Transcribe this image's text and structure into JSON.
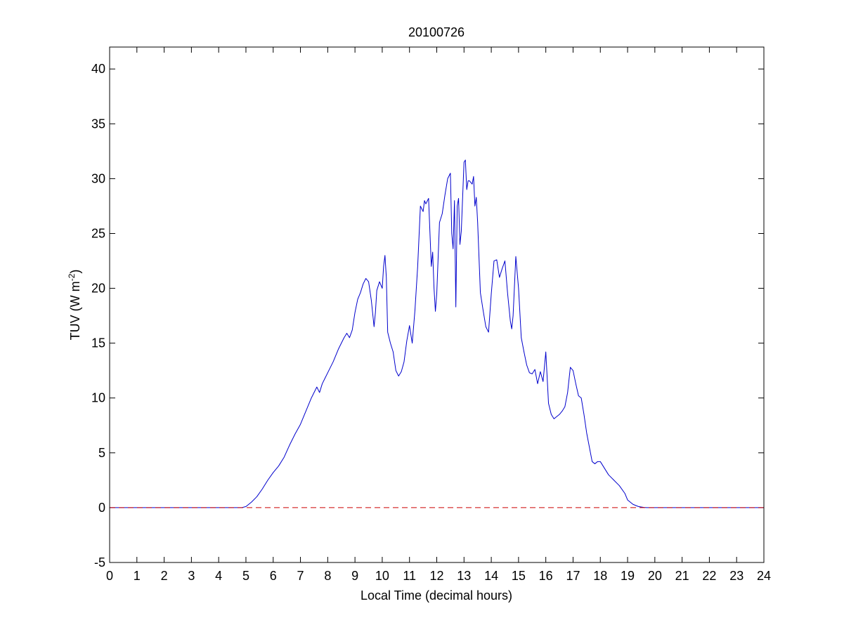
{
  "chart_data": {
    "type": "line",
    "title": "20100726",
    "xlabel": "Local Time (decimal hours)",
    "ylabel": {
      "main": "TUV (W m",
      "superscript": "-2",
      "close": ")"
    },
    "xlim": [
      0,
      24
    ],
    "ylim": [
      -5,
      42
    ],
    "xticks": [
      0,
      1,
      2,
      3,
      4,
      5,
      6,
      7,
      8,
      9,
      10,
      11,
      12,
      13,
      14,
      15,
      16,
      17,
      18,
      19,
      20,
      21,
      22,
      23,
      24
    ],
    "yticks": [
      -5,
      0,
      5,
      10,
      15,
      20,
      25,
      30,
      35,
      40
    ],
    "grid": false,
    "series": [
      {
        "color": "#0000cc",
        "style": "solid",
        "x": [
          0,
          4.85,
          5.0,
          5.2,
          5.4,
          5.6,
          5.8,
          6.0,
          6.2,
          6.4,
          6.6,
          6.8,
          7.0,
          7.2,
          7.4,
          7.6,
          7.7,
          7.8,
          7.9,
          8.0,
          8.2,
          8.4,
          8.6,
          8.7,
          8.8,
          8.9,
          9.0,
          9.1,
          9.2,
          9.3,
          9.4,
          9.5,
          9.6,
          9.7,
          9.75,
          9.8,
          9.9,
          10.0,
          10.05,
          10.1,
          10.15,
          10.2,
          10.3,
          10.4,
          10.5,
          10.6,
          10.7,
          10.8,
          10.9,
          11.0,
          11.1,
          11.2,
          11.3,
          11.4,
          11.5,
          11.55,
          11.6,
          11.7,
          11.8,
          11.85,
          11.9,
          11.95,
          12.0,
          12.1,
          12.2,
          12.3,
          12.4,
          12.5,
          12.55,
          12.6,
          12.65,
          12.7,
          12.75,
          12.8,
          12.85,
          12.9,
          13.0,
          13.05,
          13.1,
          13.15,
          13.2,
          13.3,
          13.35,
          13.4,
          13.45,
          13.5,
          13.6,
          13.7,
          13.8,
          13.9,
          14.0,
          14.1,
          14.2,
          14.3,
          14.4,
          14.5,
          14.6,
          14.7,
          14.75,
          14.8,
          14.9,
          15.0,
          15.1,
          15.2,
          15.3,
          15.4,
          15.5,
          15.6,
          15.7,
          15.8,
          15.9,
          16.0,
          16.1,
          16.2,
          16.3,
          16.4,
          16.5,
          16.6,
          16.7,
          16.8,
          16.9,
          17.0,
          17.1,
          17.2,
          17.3,
          17.4,
          17.5,
          17.6,
          17.7,
          17.8,
          17.9,
          18.0,
          18.1,
          18.3,
          18.5,
          18.7,
          18.9,
          19.0,
          19.2,
          19.4,
          19.6,
          19.7,
          19.8,
          24
        ],
        "y": [
          0,
          0,
          0.1,
          0.5,
          1.0,
          1.7,
          2.5,
          3.2,
          3.8,
          4.6,
          5.7,
          6.7,
          7.6,
          8.8,
          10.0,
          11.0,
          10.5,
          11.3,
          11.8,
          12.3,
          13.3,
          14.5,
          15.5,
          15.9,
          15.5,
          16.2,
          17.8,
          19.0,
          19.6,
          20.4,
          20.9,
          20.6,
          18.9,
          16.5,
          17.8,
          19.8,
          20.6,
          20.0,
          22.0,
          23.0,
          21.0,
          16.0,
          15.0,
          14.2,
          12.5,
          12.0,
          12.4,
          13.3,
          15.2,
          16.6,
          15.0,
          18.0,
          22.0,
          27.5,
          27.0,
          28.0,
          27.7,
          28.2,
          22.0,
          23.3,
          20.0,
          17.9,
          19.5,
          26.0,
          26.8,
          28.5,
          30.0,
          30.5,
          25.0,
          23.6,
          28.0,
          18.3,
          27.5,
          28.2,
          24.0,
          25.2,
          31.5,
          31.7,
          29.0,
          29.8,
          29.8,
          29.5,
          30.2,
          27.5,
          28.3,
          26.0,
          19.6,
          18.0,
          16.5,
          16.0,
          19.5,
          22.5,
          22.6,
          21.0,
          21.8,
          22.5,
          19.5,
          17.0,
          16.3,
          17.5,
          22.9,
          20.0,
          15.5,
          14.2,
          13.0,
          12.3,
          12.2,
          12.6,
          11.3,
          12.4,
          11.5,
          14.2,
          9.5,
          8.5,
          8.1,
          8.3,
          8.5,
          8.8,
          9.2,
          10.5,
          12.8,
          12.5,
          11.3,
          10.2,
          10.0,
          8.5,
          6.8,
          5.5,
          4.2,
          4.0,
          4.2,
          4.2,
          3.8,
          3.0,
          2.5,
          2.0,
          1.3,
          0.7,
          0.3,
          0.1,
          0.02,
          0,
          0,
          0
        ]
      },
      {
        "color": "#cc0000",
        "style": "dashed",
        "x": [
          0,
          24
        ],
        "y": [
          0,
          0
        ]
      }
    ]
  }
}
